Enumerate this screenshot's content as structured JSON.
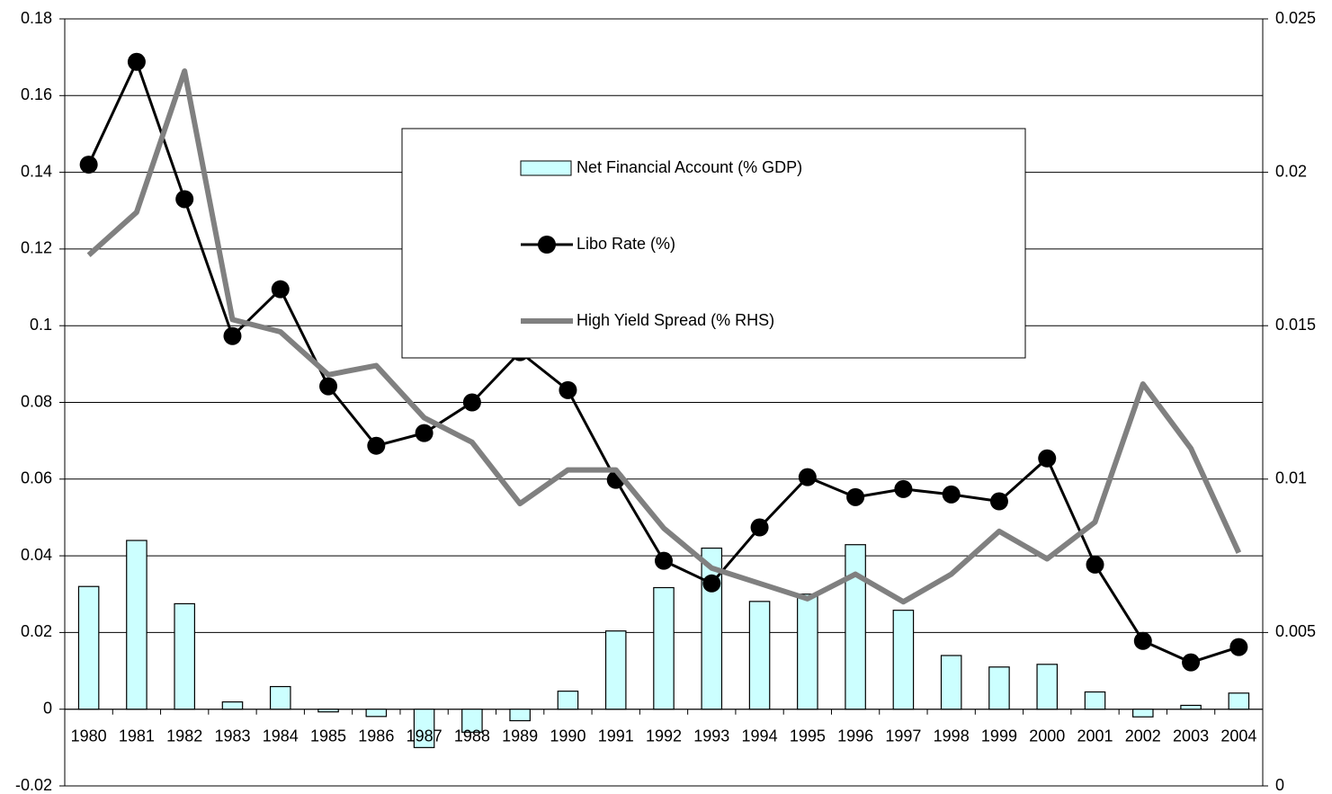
{
  "chart_data": {
    "type": "bar",
    "categories": [
      "1980",
      "1981",
      "1982",
      "1983",
      "1984",
      "1985",
      "1986",
      "1987",
      "1988",
      "1989",
      "1990",
      "1991",
      "1992",
      "1993",
      "1994",
      "1995",
      "1996",
      "1997",
      "1998",
      "1999",
      "2000",
      "2001",
      "2002",
      "2003",
      "2004"
    ],
    "series": [
      {
        "name": "Net Financial Account (% GDP)",
        "type": "bar",
        "color": "#ccffff",
        "values": [
          0.032,
          0.044,
          0.0275,
          0.0019,
          0.0059,
          -0.0007,
          -0.0019,
          -0.01,
          -0.006,
          -0.003,
          0.0047,
          0.0204,
          0.0317,
          0.042,
          0.0281,
          0.03,
          0.0429,
          0.0258,
          0.014,
          0.011,
          0.0117,
          0.0045,
          -0.002,
          0.001,
          0.0042
        ]
      },
      {
        "name": "Libo Rate (%)",
        "type": "line",
        "marker": true,
        "color": "#000000",
        "values": [
          0.142,
          0.1688,
          0.133,
          0.0973,
          0.1095,
          0.0842,
          0.0687,
          0.072,
          0.08,
          0.0931,
          0.0832,
          0.0598,
          0.0387,
          0.0328,
          0.0474,
          0.0605,
          0.0553,
          0.0574,
          0.056,
          0.0542,
          0.0654,
          0.0377,
          0.0178,
          0.0122,
          0.0162
        ]
      },
      {
        "name": "High Yield Spread (% RHS)",
        "type": "line",
        "marker": false,
        "color": "#808080",
        "axis": "y2",
        "values": [
          0.0173,
          0.0187,
          0.0233,
          0.0152,
          0.0148,
          0.0134,
          0.0137,
          0.012,
          0.0112,
          0.0092,
          0.0103,
          0.0103,
          0.0084,
          0.0071,
          0.0066,
          0.0061,
          0.0069,
          0.006,
          0.0069,
          0.0083,
          0.0074,
          0.0086,
          0.0131,
          0.011,
          0.0076
        ]
      }
    ],
    "ylim": [
      -0.02,
      0.18
    ],
    "yticks": [
      -0.02,
      0,
      0.02,
      0.04,
      0.06,
      0.08,
      0.1,
      0.12,
      0.14,
      0.16,
      0.18
    ],
    "y2lim": [
      0,
      0.025
    ],
    "y2ticks": [
      0,
      0.005,
      0.01,
      0.015,
      0.02,
      0.025
    ],
    "grid": true,
    "legend": "upper center"
  }
}
